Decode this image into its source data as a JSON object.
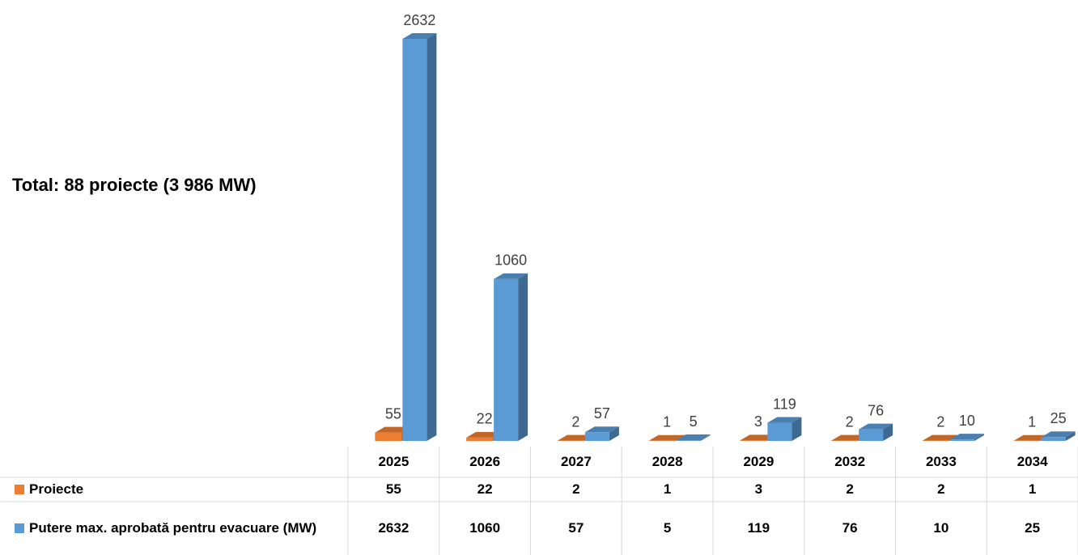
{
  "chart_data": {
    "type": "bar3d",
    "annotation": "Total: 88 proiecte (3 986 MW)",
    "categories": [
      "2025",
      "2026",
      "2027",
      "2028",
      "2029",
      "2032",
      "2033",
      "2034"
    ],
    "series": [
      {
        "name": "Proiecte",
        "color": "#ed7d31",
        "values": [
          55,
          22,
          2,
          1,
          3,
          2,
          2,
          1
        ]
      },
      {
        "name": "Putere max. aprobată pentru evacuare (MW)",
        "color": "#5b9bd5",
        "values": [
          2632,
          1060,
          57,
          5,
          119,
          76,
          10,
          25
        ]
      }
    ],
    "data_table": true
  }
}
